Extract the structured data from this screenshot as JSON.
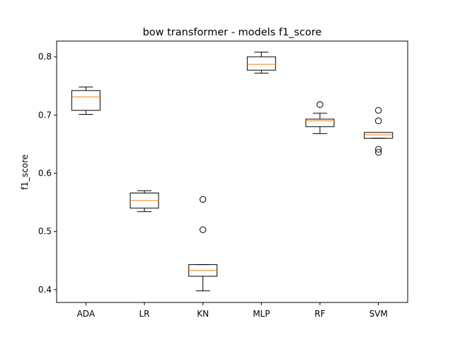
{
  "chart_data": {
    "type": "box",
    "title": "bow transformer - models f1_score",
    "xlabel": "",
    "ylabel": "f1_score",
    "ylim": [
      0.378,
      0.827
    ],
    "yticks": [
      0.4,
      0.5,
      0.6,
      0.7,
      0.8
    ],
    "ytick_labels": [
      "0.4",
      "0.5",
      "0.6",
      "0.7",
      "0.8"
    ],
    "grid": false,
    "categories": [
      "ADA",
      "LR",
      "KN",
      "MLP",
      "RF",
      "SVM"
    ],
    "boxes": [
      {
        "label": "ADA",
        "whisker_low": 0.701,
        "q1": 0.708,
        "median": 0.731,
        "q3": 0.742,
        "whisker_high": 0.748,
        "outliers": []
      },
      {
        "label": "LR",
        "whisker_low": 0.534,
        "q1": 0.54,
        "median": 0.553,
        "q3": 0.566,
        "whisker_high": 0.57,
        "outliers": []
      },
      {
        "label": "KN",
        "whisker_low": 0.398,
        "q1": 0.423,
        "median": 0.433,
        "q3": 0.443,
        "whisker_high": 0.443,
        "outliers": [
          0.503,
          0.555
        ]
      },
      {
        "label": "MLP",
        "whisker_low": 0.772,
        "q1": 0.777,
        "median": 0.787,
        "q3": 0.8,
        "whisker_high": 0.808,
        "outliers": []
      },
      {
        "label": "RF",
        "whisker_low": 0.668,
        "q1": 0.68,
        "median": 0.69,
        "q3": 0.693,
        "whisker_high": 0.703,
        "outliers": [
          0.718
        ]
      },
      {
        "label": "SVM",
        "whisker_low": 0.66,
        "q1": 0.66,
        "median": 0.666,
        "q3": 0.67,
        "whisker_high": 0.67,
        "outliers": [
          0.708,
          0.69,
          0.641,
          0.636
        ]
      }
    ],
    "colors": {
      "box": "#000000",
      "median": "#ff7f0e",
      "outlier": "#000000"
    }
  }
}
